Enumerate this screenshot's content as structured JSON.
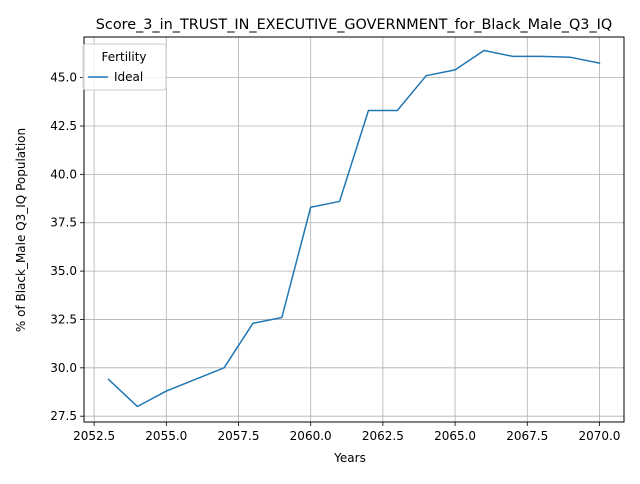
{
  "chart_data": {
    "type": "line",
    "title": "Score_3_in_TRUST_IN_EXECUTIVE_GOVERNMENT_for_Black_Male_Q3_IQ",
    "xlabel": "Years",
    "ylabel": "% of Black_Male Q3_IQ Population",
    "xlim": [
      2052.15,
      2070.85
    ],
    "ylim": [
      27.2,
      47.1
    ],
    "xticks": [
      2052.5,
      2055.0,
      2057.5,
      2060.0,
      2062.5,
      2065.0,
      2067.5,
      2070.0
    ],
    "xtick_labels": [
      "2052.5",
      "2055.0",
      "2057.5",
      "2060.0",
      "2062.5",
      "2065.0",
      "2067.5",
      "2070.0"
    ],
    "yticks": [
      27.5,
      30.0,
      32.5,
      35.0,
      37.5,
      40.0,
      42.5,
      45.0
    ],
    "ytick_labels": [
      "27.5",
      "30.0",
      "32.5",
      "35.0",
      "37.5",
      "40.0",
      "42.5",
      "45.0"
    ],
    "grid": true,
    "legend": {
      "title": "Fertility",
      "location": "upper-left"
    },
    "series": [
      {
        "name": "Ideal",
        "color": "#1f77b4",
        "x": [
          2053,
          2054,
          2055,
          2056,
          2057,
          2058,
          2059,
          2060,
          2061,
          2062,
          2063,
          2064,
          2065,
          2066,
          2067,
          2068,
          2069,
          2070
        ],
        "values": [
          29.4,
          28.0,
          28.8,
          29.4,
          30.0,
          32.3,
          32.6,
          38.3,
          38.6,
          43.3,
          43.3,
          45.1,
          45.4,
          46.4,
          46.1,
          46.1,
          46.05,
          45.75
        ]
      }
    ]
  }
}
